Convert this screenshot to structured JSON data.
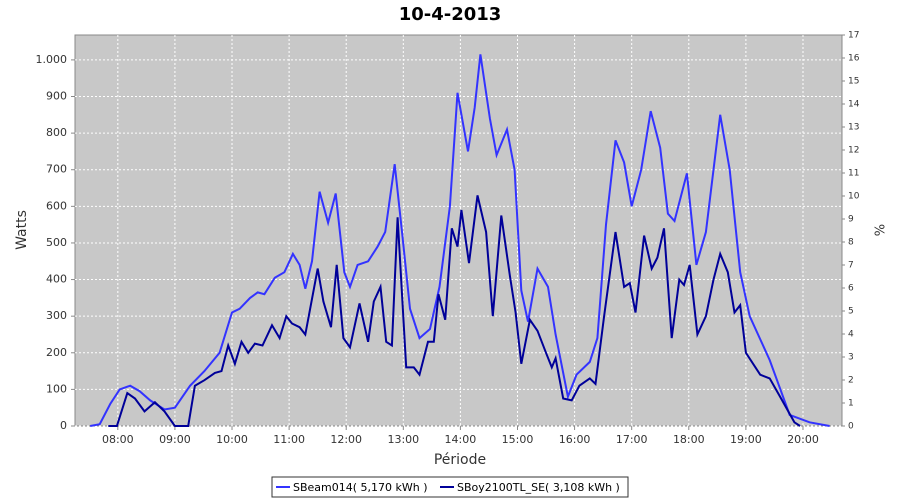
{
  "chart_data": {
    "type": "line",
    "title": "10-4-2013",
    "xlabel": "Période",
    "ylabel": "Watts",
    "y2label": "%",
    "xlim": [
      "07:15",
      "20:41"
    ],
    "xticks": [
      "08:00",
      "09:00",
      "10:00",
      "11:00",
      "12:00",
      "13:00",
      "14:00",
      "15:00",
      "16:00",
      "17:00",
      "18:00",
      "19:00",
      "20:00"
    ],
    "ylim": [
      0,
      1068
    ],
    "yticks": [
      0,
      100,
      200,
      300,
      400,
      500,
      600,
      700,
      800,
      900,
      {
        "value": 1000,
        "label": "1.000"
      }
    ],
    "y2lim": [
      0,
      17
    ],
    "y2ticks": [
      0,
      1,
      2,
      3,
      4,
      5,
      6,
      7,
      8,
      9,
      10,
      11,
      12,
      13,
      14,
      15,
      16,
      17
    ],
    "grid": true,
    "legend": "bottom",
    "series": [
      {
        "name": "SBeam014( 5,170 kWh )",
        "color": "#3333ff",
        "x": [
          "07:31",
          "07:41",
          "07:52",
          "08:02",
          "08:13",
          "08:23",
          "08:34",
          "08:49",
          "09:00",
          "09:16",
          "09:31",
          "09:47",
          "10:00",
          "10:08",
          "10:19",
          "10:27",
          "10:34",
          "10:45",
          "10:55",
          "11:04",
          "11:11",
          "11:17",
          "11:24",
          "11:32",
          "11:41",
          "11:49",
          "11:58",
          "12:04",
          "12:12",
          "12:23",
          "12:33",
          "12:41",
          "12:51",
          "12:59",
          "13:07",
          "13:17",
          "13:28",
          "13:38",
          "13:49",
          "13:57",
          "14:08",
          "14:15",
          "14:21",
          "14:31",
          "14:38",
          "14:49",
          "14:57",
          "15:04",
          "15:11",
          "15:21",
          "15:32",
          "15:40",
          "15:53",
          "16:02",
          "16:16",
          "16:24",
          "16:33",
          "16:43",
          "16:52",
          "17:00",
          "17:10",
          "17:20",
          "17:30",
          "17:38",
          "17:45",
          "17:58",
          "18:08",
          "18:18",
          "18:33",
          "18:43",
          "18:54",
          "19:04",
          "19:25",
          "19:46",
          "20:07",
          "20:28"
        ],
        "values": [
          0,
          5,
          60,
          100,
          110,
          95,
          70,
          45,
          50,
          110,
          150,
          200,
          310,
          320,
          350,
          365,
          360,
          405,
          420,
          470,
          440,
          375,
          450,
          640,
          555,
          635,
          420,
          380,
          440,
          450,
          490,
          530,
          715,
          520,
          320,
          240,
          265,
          380,
          600,
          910,
          750,
          870,
          1015,
          840,
          740,
          810,
          700,
          370,
          285,
          430,
          380,
          250,
          80,
          140,
          175,
          240,
          550,
          780,
          720,
          600,
          700,
          860,
          760,
          580,
          560,
          690,
          440,
          530,
          850,
          700,
          420,
          300,
          180,
          30,
          10,
          0
        ]
      },
      {
        "name": "SBoy2100TL_SE( 3,108 kWh )",
        "color": "#000099",
        "x": [
          "07:50",
          "07:59",
          "08:10",
          "08:18",
          "08:28",
          "08:39",
          "08:49",
          "09:00",
          "09:14",
          "09:21",
          "09:31",
          "09:42",
          "09:49",
          "09:56",
          "10:03",
          "10:10",
          "10:17",
          "10:24",
          "10:32",
          "10:42",
          "10:50",
          "10:57",
          "11:03",
          "11:11",
          "11:17",
          "11:30",
          "11:36",
          "11:44",
          "11:50",
          "11:57",
          "12:04",
          "12:14",
          "12:23",
          "12:29",
          "12:36",
          "12:42",
          "12:48",
          "12:54",
          "13:03",
          "13:11",
          "13:17",
          "13:26",
          "13:32",
          "13:37",
          "13:44",
          "13:51",
          "13:57",
          "14:01",
          "14:09",
          "14:18",
          "14:27",
          "14:34",
          "14:43",
          "14:52",
          "14:58",
          "15:04",
          "15:13",
          "15:21",
          "15:30",
          "15:36",
          "15:40",
          "15:48",
          "15:57",
          "16:05",
          "16:16",
          "16:22",
          "16:31",
          "16:43",
          "16:52",
          "16:58",
          "17:04",
          "17:13",
          "17:21",
          "17:27",
          "17:34",
          "17:42",
          "17:50",
          "17:55",
          "18:01",
          "18:09",
          "18:18",
          "18:26",
          "18:33",
          "18:41",
          "18:48",
          "18:54",
          "19:00",
          "19:15",
          "19:25",
          "19:36",
          "19:51",
          "19:57"
        ],
        "values": [
          0,
          0,
          90,
          75,
          40,
          65,
          40,
          0,
          0,
          110,
          125,
          145,
          150,
          220,
          170,
          230,
          200,
          225,
          220,
          275,
          240,
          300,
          280,
          270,
          250,
          430,
          340,
          270,
          440,
          240,
          215,
          335,
          230,
          340,
          380,
          230,
          220,
          570,
          160,
          160,
          140,
          230,
          230,
          360,
          290,
          540,
          490,
          590,
          445,
          630,
          530,
          300,
          575,
          410,
          310,
          170,
          290,
          260,
          200,
          160,
          185,
          75,
          70,
          110,
          130,
          115,
          300,
          530,
          380,
          390,
          310,
          520,
          430,
          460,
          540,
          240,
          400,
          385,
          440,
          250,
          300,
          400,
          470,
          420,
          310,
          330,
          200,
          140,
          130,
          80,
          10,
          0
        ]
      }
    ]
  }
}
